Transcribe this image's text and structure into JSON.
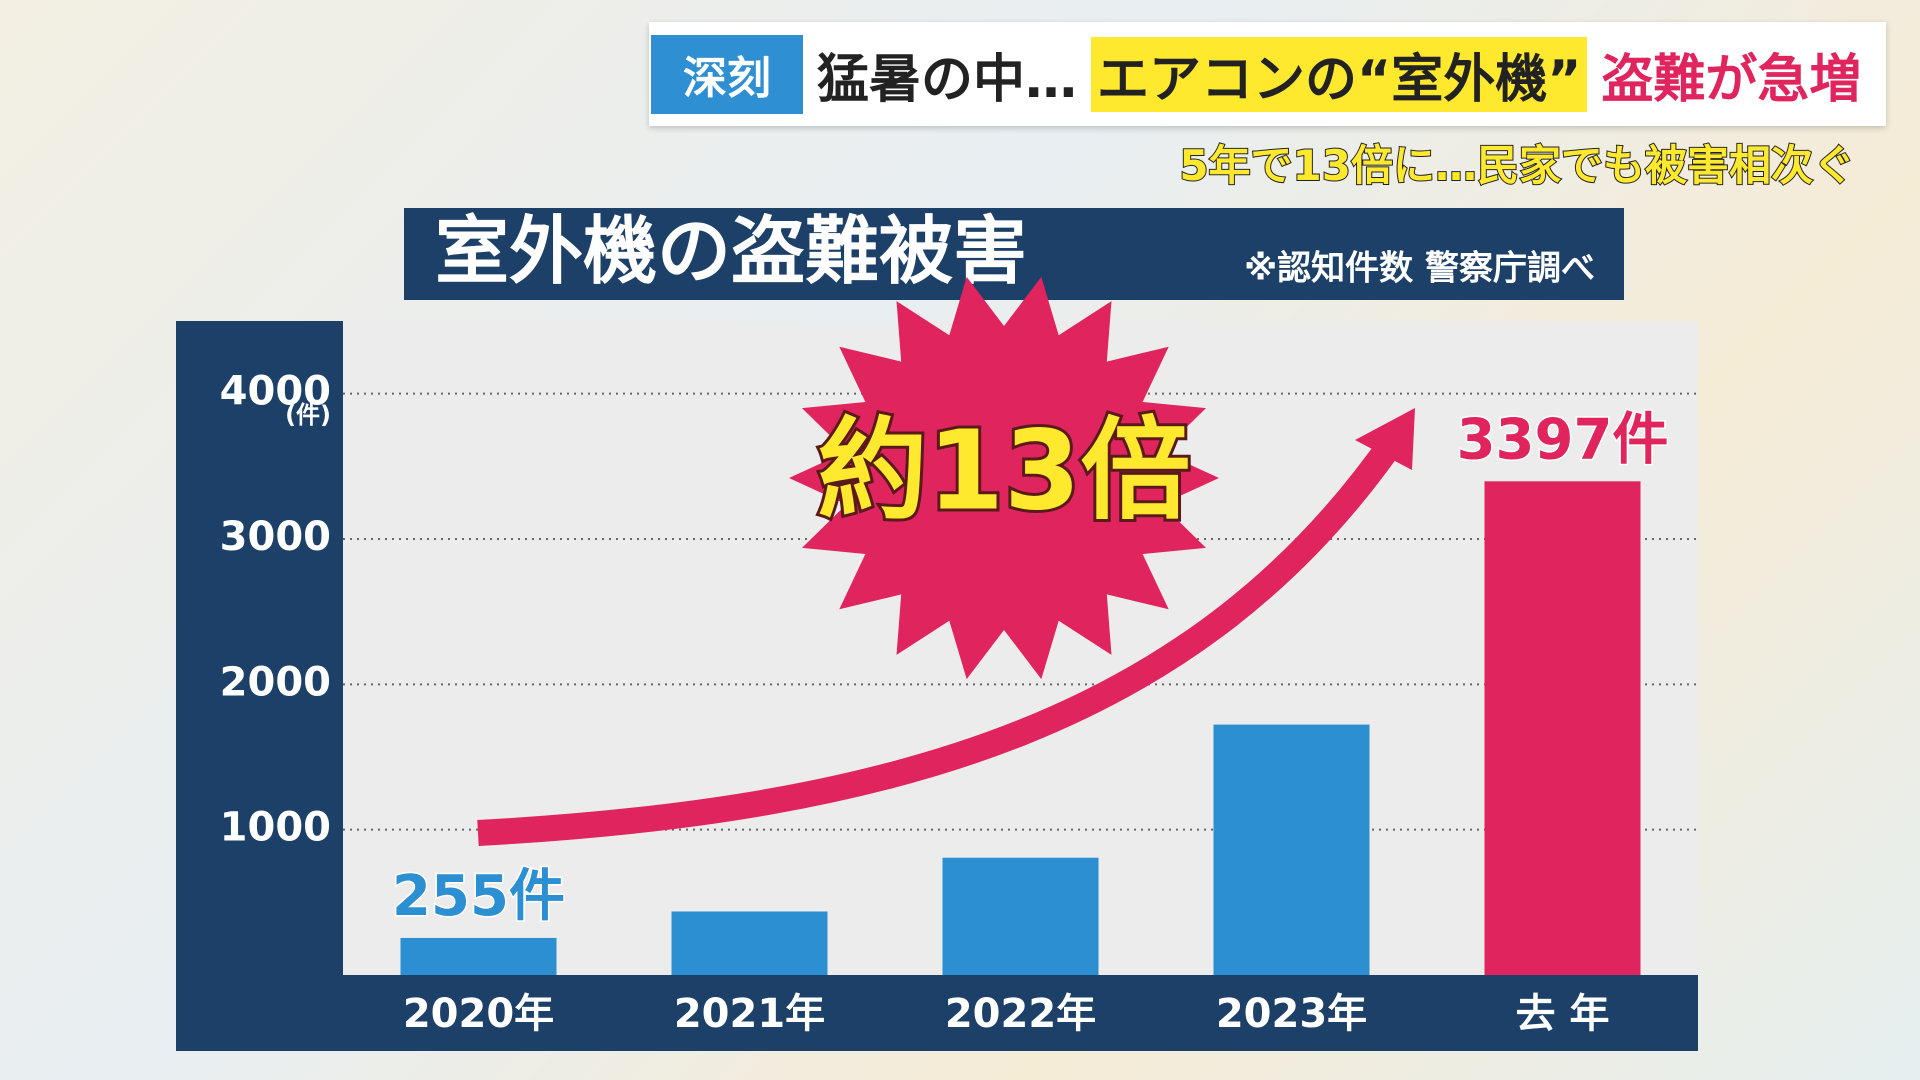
{
  "header": {
    "badge": "深刻",
    "headline_parts": [
      "猛暑の中…",
      "エアコンの“室外機”",
      "盗難が急増"
    ],
    "subheadline": "5年で13倍に…民家でも被害相次ぐ"
  },
  "chart_data": {
    "type": "bar",
    "title": "室外機の盗難被害",
    "subtitle": "※認知件数 警察庁調べ",
    "y_unit": "(件)",
    "annotation": "約13倍",
    "categories": [
      "2020年",
      "2021年",
      "2022年",
      "2023年",
      "去 年"
    ],
    "values": [
      255,
      437,
      807,
      1723,
      3397
    ],
    "value_labels": [
      "255件",
      null,
      null,
      null,
      "3397件"
    ],
    "colors": [
      "#2b8fd1",
      "#2b8fd1",
      "#2b8fd1",
      "#2b8fd1",
      "#e0245e"
    ],
    "ylim": [
      0,
      4500
    ],
    "yticks": [
      1000,
      2000,
      3000,
      4000
    ],
    "grid": true
  }
}
